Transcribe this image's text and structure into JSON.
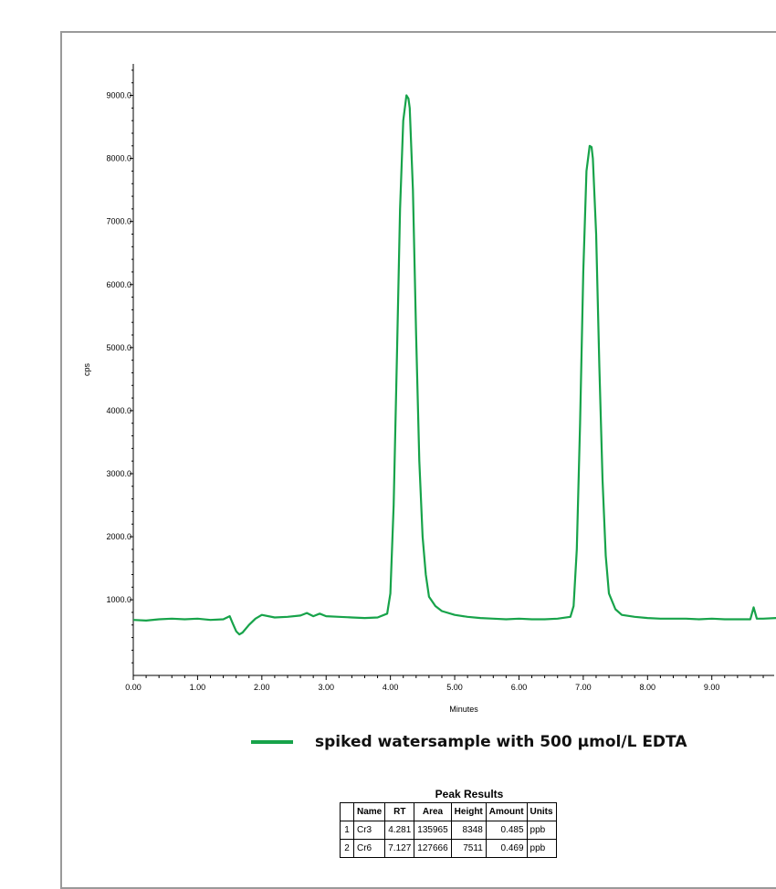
{
  "chart_data": {
    "type": "line",
    "xlabel": "Minutes",
    "ylabel": "cps",
    "xlim": [
      0.0,
      10.0
    ],
    "ylim": [
      -200,
      9500
    ],
    "x_ticks": [
      "0.00",
      "1.00",
      "2.00",
      "3.00",
      "4.00",
      "5.00",
      "6.00",
      "7.00",
      "8.00",
      "9.00"
    ],
    "y_ticks": [
      "1000.0",
      "2000.0",
      "3000.0",
      "4000.0",
      "5000.0",
      "6000.0",
      "7000.0",
      "8000.0",
      "9000.0"
    ],
    "series": [
      {
        "name": "spiked watersample with 500 µmol/L EDTA",
        "color": "#17a34a",
        "x": [
          0.0,
          0.2,
          0.4,
          0.6,
          0.8,
          1.0,
          1.2,
          1.4,
          1.5,
          1.55,
          1.6,
          1.65,
          1.7,
          1.8,
          1.9,
          2.0,
          2.2,
          2.4,
          2.6,
          2.7,
          2.8,
          2.9,
          3.0,
          3.2,
          3.4,
          3.6,
          3.8,
          3.95,
          4.0,
          4.05,
          4.1,
          4.15,
          4.2,
          4.25,
          4.28,
          4.3,
          4.35,
          4.4,
          4.45,
          4.5,
          4.55,
          4.6,
          4.7,
          4.8,
          5.0,
          5.2,
          5.4,
          5.6,
          5.8,
          6.0,
          6.2,
          6.4,
          6.6,
          6.8,
          6.85,
          6.9,
          6.95,
          7.0,
          7.05,
          7.1,
          7.13,
          7.15,
          7.2,
          7.25,
          7.3,
          7.35,
          7.4,
          7.5,
          7.6,
          7.8,
          8.0,
          8.2,
          8.4,
          8.6,
          8.8,
          9.0,
          9.2,
          9.4,
          9.6,
          9.65,
          9.7,
          9.75,
          9.8,
          10.0
        ],
        "y": [
          680,
          670,
          690,
          700,
          690,
          700,
          680,
          690,
          740,
          620,
          500,
          450,
          480,
          600,
          700,
          760,
          720,
          730,
          750,
          790,
          740,
          780,
          740,
          730,
          720,
          710,
          720,
          780,
          1100,
          2500,
          4800,
          7200,
          8600,
          9000,
          8950,
          8800,
          7500,
          5200,
          3200,
          2000,
          1400,
          1050,
          900,
          820,
          760,
          730,
          710,
          700,
          690,
          700,
          690,
          690,
          700,
          730,
          900,
          1800,
          3800,
          6200,
          7800,
          8200,
          8180,
          8000,
          6800,
          4700,
          2900,
          1700,
          1100,
          850,
          760,
          730,
          710,
          700,
          700,
          700,
          690,
          700,
          690,
          690,
          690,
          880,
          700,
          700,
          700,
          710
        ]
      }
    ],
    "grid": false
  },
  "legend": {
    "label": "spiked watersample with 500 µmol/L EDTA",
    "color": "#17a34a"
  },
  "peak_results": {
    "title": "Peak Results",
    "columns": [
      "",
      "Name",
      "RT",
      "Area",
      "Height",
      "Amount",
      "Units"
    ],
    "rows": [
      [
        "1",
        "Cr3",
        "4.281",
        "135965",
        "8348",
        "0.485",
        "ppb"
      ],
      [
        "2",
        "Cr6",
        "7.127",
        "127666",
        "7511",
        "0.469",
        "ppb"
      ]
    ]
  }
}
